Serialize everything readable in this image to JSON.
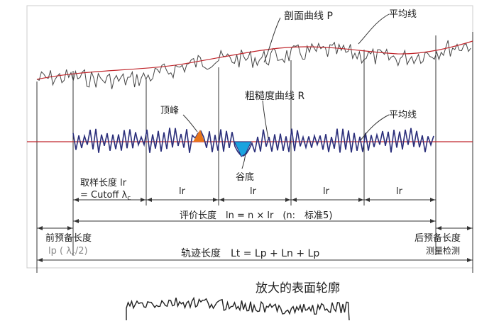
{
  "labels": {
    "profile_curve": "剖面曲线 P",
    "mean_line_top": "平均线",
    "roughness_curve": "粗糙度曲线 R",
    "mean_line_mid": "平均线",
    "peak": "顶峰",
    "valley": "谷底",
    "sampling_length_line1": "取样长度 lr",
    "sampling_length_line2": "= Cutoff λ",
    "sampling_length_sub": "c",
    "lr": "lr",
    "evaluation_length": "评价长度　ln = n × lr　(n:　标准5)",
    "pre_travel_line1": "前预备长度",
    "pre_travel_line2": "lp ( λ",
    "pre_travel_sub": "c",
    "pre_travel_tail": "/2)",
    "post_travel": "后预备长度",
    "travel_length": "轨迹长度　Lt = Lp + Ln + Lp",
    "watermark": "测量检测",
    "bottom_title": "放大的表面轮廓"
  },
  "colors": {
    "profile": "#444444",
    "mean_line": "#c0262c",
    "roughness": "#2a2e7a",
    "peak_fill": "#e8751a",
    "valley_fill": "#1aa3df",
    "dim_line": "#333333",
    "grey_text": "#8a8a8a"
  }
}
